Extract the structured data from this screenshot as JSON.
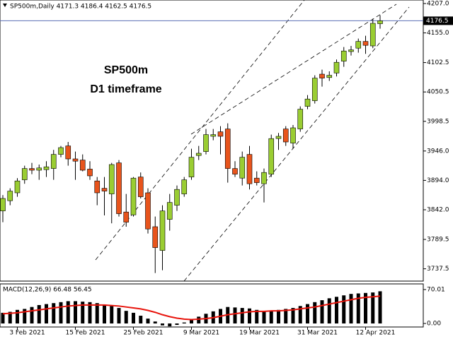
{
  "chart_data": {
    "type": "candlestick",
    "title": "SP500m,Daily  4171.3 4186.4 4162.5 4176.5",
    "annotations": [
      "SP500m",
      "D1 timeframe"
    ],
    "categories": [
      null,
      null,
      "3 Feb 2021",
      null,
      null,
      null,
      null,
      null,
      null,
      null,
      "15 Feb 2021",
      null,
      null,
      null,
      null,
      null,
      null,
      null,
      "25 Feb 2021",
      null,
      null,
      null,
      null,
      null,
      null,
      null,
      "9 Mar 2021",
      null,
      null,
      null,
      null,
      null,
      null,
      null,
      "19 Mar 2021",
      null,
      null,
      null,
      null,
      null,
      null,
      null,
      "31 Mar 2021",
      null,
      null,
      null,
      null,
      null,
      null,
      null,
      "12 Apr 2021",
      null,
      null
    ],
    "open": [
      3840,
      3858,
      3872,
      3895,
      3915,
      3912,
      3913,
      3915,
      3940,
      3955,
      3932,
      3930,
      3914,
      3893,
      3880,
      3870,
      3925,
      3838,
      3833,
      3900,
      3872,
      3812,
      3770,
      3825,
      3850,
      3870,
      3900,
      3938,
      3945,
      3972,
      3980,
      3985,
      3915,
      3898,
      3940,
      3898,
      3888,
      3905,
      3968,
      3985,
      3960,
      3985,
      4025,
      4035,
      4082,
      4076,
      4084,
      4105,
      4122,
      4128,
      4140,
      4132,
      4171.3
    ],
    "high": [
      3868,
      3880,
      3898,
      3920,
      3925,
      3922,
      3928,
      3948,
      3955,
      3962,
      3945,
      3940,
      3928,
      3900,
      3900,
      3925,
      3930,
      3870,
      3900,
      3908,
      3880,
      3830,
      3850,
      3870,
      3885,
      3900,
      3950,
      3955,
      3985,
      3985,
      3990,
      3995,
      3928,
      3945,
      3955,
      3910,
      3915,
      3975,
      3978,
      3990,
      3992,
      4025,
      4045,
      4080,
      4090,
      4087,
      4108,
      4130,
      4132,
      4145,
      4150,
      4180,
      4186.4
    ],
    "low": [
      3820,
      3850,
      3865,
      3888,
      3905,
      3895,
      3900,
      3895,
      3935,
      3920,
      3895,
      3910,
      3895,
      3850,
      3832,
      3818,
      3830,
      3812,
      3830,
      3862,
      3800,
      3730,
      3735,
      3805,
      3840,
      3865,
      3895,
      3930,
      3940,
      3965,
      3940,
      3890,
      3900,
      3885,
      3878,
      3885,
      3855,
      3900,
      3948,
      3955,
      3950,
      3980,
      4020,
      4030,
      4060,
      4070,
      4078,
      4095,
      4115,
      4120,
      4118,
      4128,
      4162.5
    ],
    "close": [
      3862,
      3875,
      3893,
      3915,
      3912,
      3916,
      3918,
      3940,
      3952,
      3932,
      3928,
      3912,
      3902,
      3872,
      3875,
      3922,
      3835,
      3820,
      3898,
      3865,
      3808,
      3775,
      3840,
      3855,
      3878,
      3895,
      3935,
      3942,
      3975,
      3975,
      3972,
      3915,
      3905,
      3935,
      3888,
      3890,
      3908,
      3968,
      3972,
      3962,
      3987,
      4020,
      4038,
      4075,
      4075,
      4080,
      4103,
      4123,
      4125,
      4140,
      4133,
      4172,
      4176.5
    ],
    "up_color": "#9acd32",
    "down_color": "#e8541c",
    "last_price": 4176.5,
    "last_price_color": "#5b6fb5",
    "ylim": [
      3715.75,
      4213.25
    ],
    "yticks": [
      {
        "value": 4207,
        "label": "4207.0"
      },
      {
        "value": 4155,
        "label": "4155.0"
      },
      4102.5,
      4050.5,
      3998.5,
      {
        "value": 3946,
        "label": "3946.0"
      },
      {
        "value": 3894,
        "label": "3894.0"
      },
      {
        "value": 3842,
        "label": "3842.0"
      },
      3789.5,
      3737.5
    ],
    "macd": {
      "label": "MACD(12,26,9) 66.48 56.45",
      "histogram": [
        22,
        24,
        28,
        30,
        34,
        38,
        40,
        42,
        44,
        46,
        46,
        45,
        44,
        42,
        38,
        36,
        32,
        26,
        22,
        16,
        10,
        4,
        -4,
        -6,
        -3,
        2,
        8,
        14,
        20,
        25,
        30,
        34,
        33,
        32,
        31,
        28,
        26,
        26,
        28,
        30,
        32,
        36,
        40,
        44,
        48,
        52,
        55,
        58,
        61,
        62,
        63,
        64,
        66.48
      ],
      "signal": [
        20,
        21,
        22,
        24,
        26,
        28,
        30,
        32,
        34,
        36,
        37,
        38,
        38,
        38,
        38,
        37,
        36,
        34,
        32,
        30,
        27,
        23,
        18,
        14,
        11,
        9,
        8,
        9,
        10,
        12,
        15,
        18,
        20,
        22,
        24,
        25,
        25,
        26,
        26,
        27,
        28,
        30,
        32,
        34,
        37,
        40,
        43,
        46,
        49,
        52,
        54,
        55,
        56.45
      ],
      "histogram_color": "#000000",
      "signal_color": "#e8140c",
      "ylim": [
        -7.3,
        80.2
      ],
      "yticks": [
        {
          "value": 70.01,
          "label": "70.01"
        },
        {
          "value": 0,
          "label": "0.00"
        }
      ]
    }
  }
}
